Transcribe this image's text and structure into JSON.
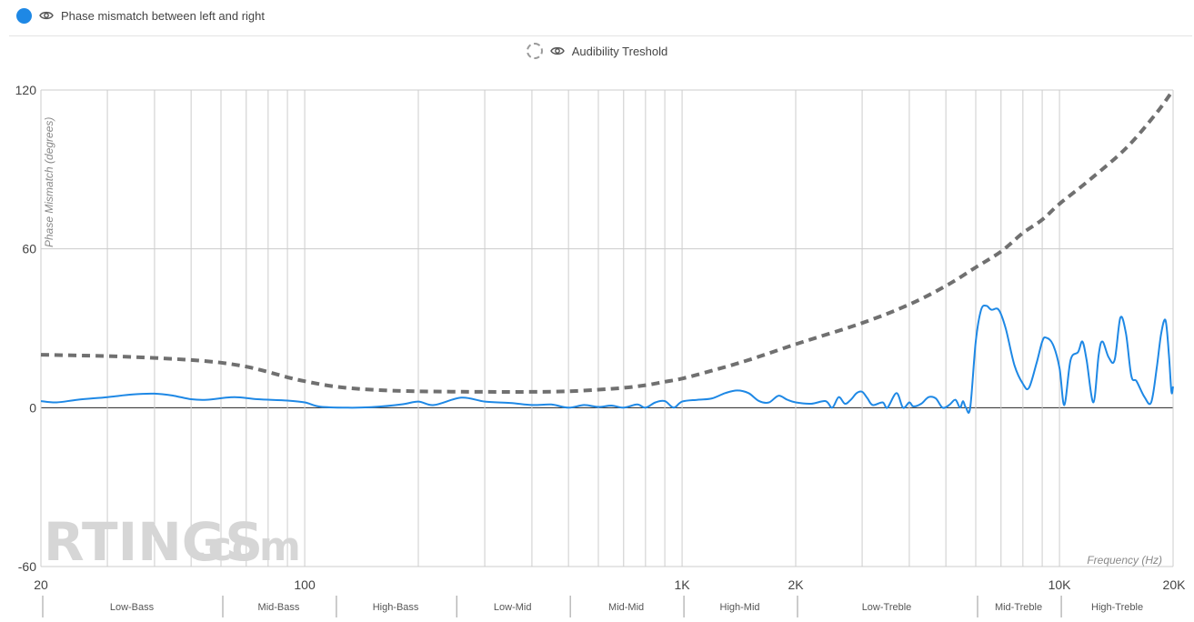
{
  "legend": {
    "series_label": "Phase mismatch between left and right",
    "threshold_label": "Audibility Treshold"
  },
  "colors": {
    "series": "#1e88e5",
    "threshold": "#707070",
    "grid": "#cccccc",
    "zero_line": "#222222"
  },
  "icons": {
    "visibility": "eye-icon"
  },
  "watermark": {
    "brand": "RTINGS",
    "suffix": ".com"
  },
  "chart_data": {
    "type": "line",
    "ylabel": "Phase Mismatch (degrees)",
    "xlabel": "Frequency (Hz)",
    "xscale": "log",
    "xlim": [
      20,
      20000
    ],
    "ylim": [
      -60,
      120
    ],
    "grid": true,
    "y_ticks": [
      {
        "value": 120,
        "label": "120"
      },
      {
        "value": 60,
        "label": "60"
      },
      {
        "value": 0,
        "label": "0"
      },
      {
        "value": -60,
        "label": "-60"
      }
    ],
    "x_ticks": [
      {
        "value": 20,
        "label": "20"
      },
      {
        "value": 100,
        "label": "100"
      },
      {
        "value": 1000,
        "label": "1K"
      },
      {
        "value": 2000,
        "label": "2K"
      },
      {
        "value": 10000,
        "label": "10K"
      },
      {
        "value": 20000,
        "label": "20K"
      }
    ],
    "gridlines_x": [
      20,
      30,
      40,
      50,
      60,
      70,
      80,
      90,
      100,
      200,
      300,
      400,
      500,
      600,
      700,
      800,
      900,
      1000,
      2000,
      3000,
      4000,
      5000,
      6000,
      7000,
      8000,
      9000,
      10000,
      20000
    ],
    "bands": [
      {
        "label": "Low-Bass",
        "from": 20,
        "to": 60
      },
      {
        "label": "Mid-Bass",
        "from": 60,
        "to": 120
      },
      {
        "label": "High-Bass",
        "from": 120,
        "to": 250
      },
      {
        "label": "Low-Mid",
        "from": 250,
        "to": 500
      },
      {
        "label": "Mid-Mid",
        "from": 500,
        "to": 1000
      },
      {
        "label": "High-Mid",
        "from": 1000,
        "to": 2000
      },
      {
        "label": "Low-Treble",
        "from": 2000,
        "to": 6000
      },
      {
        "label": "Mid-Treble",
        "from": 6000,
        "to": 10000
      },
      {
        "label": "High-Treble",
        "from": 10000,
        "to": 20000
      }
    ],
    "series": [
      {
        "name": "Phase mismatch between left and right",
        "style": "solid",
        "points": [
          [
            20,
            2.5
          ],
          [
            22,
            2.0
          ],
          [
            25,
            3.0
          ],
          [
            30,
            4.0
          ],
          [
            35,
            5.0
          ],
          [
            40,
            5.3
          ],
          [
            45,
            4.5
          ],
          [
            50,
            3.2
          ],
          [
            55,
            3.0
          ],
          [
            65,
            4.0
          ],
          [
            75,
            3.2
          ],
          [
            90,
            2.7
          ],
          [
            100,
            2.0
          ],
          [
            110,
            0.4
          ],
          [
            130,
            0.0
          ],
          [
            150,
            0.2
          ],
          [
            180,
            1.2
          ],
          [
            200,
            2.3
          ],
          [
            220,
            1.0
          ],
          [
            260,
            3.8
          ],
          [
            300,
            2.3
          ],
          [
            350,
            1.8
          ],
          [
            400,
            1.0
          ],
          [
            450,
            1.2
          ],
          [
            500,
            0.0
          ],
          [
            550,
            1.0
          ],
          [
            600,
            0.3
          ],
          [
            650,
            0.8
          ],
          [
            700,
            0.0
          ],
          [
            760,
            1.2
          ],
          [
            800,
            0.0
          ],
          [
            850,
            2.0
          ],
          [
            900,
            2.5
          ],
          [
            950,
            0.0
          ],
          [
            1000,
            2.3
          ],
          [
            1100,
            3.0
          ],
          [
            1200,
            3.5
          ],
          [
            1300,
            5.5
          ],
          [
            1400,
            6.5
          ],
          [
            1500,
            5.5
          ],
          [
            1600,
            2.5
          ],
          [
            1700,
            2.0
          ],
          [
            1800,
            4.5
          ],
          [
            1900,
            3.0
          ],
          [
            2000,
            2.0
          ],
          [
            2200,
            1.5
          ],
          [
            2400,
            2.5
          ],
          [
            2500,
            0.0
          ],
          [
            2600,
            4.0
          ],
          [
            2700,
            1.5
          ],
          [
            2800,
            3.0
          ],
          [
            2900,
            5.5
          ],
          [
            3000,
            6.0
          ],
          [
            3100,
            3.5
          ],
          [
            3200,
            1.0
          ],
          [
            3400,
            2.0
          ],
          [
            3500,
            0.0
          ],
          [
            3700,
            5.5
          ],
          [
            3850,
            0.0
          ],
          [
            4000,
            2.0
          ],
          [
            4100,
            0.5
          ],
          [
            4300,
            1.5
          ],
          [
            4500,
            4.0
          ],
          [
            4700,
            3.5
          ],
          [
            4900,
            0.0
          ],
          [
            5100,
            1.0
          ],
          [
            5300,
            3.0
          ],
          [
            5450,
            0.0
          ],
          [
            5550,
            2.5
          ],
          [
            5650,
            0.0
          ],
          [
            5800,
            0.0
          ],
          [
            6000,
            25.0
          ],
          [
            6200,
            37.0
          ],
          [
            6400,
            38.5
          ],
          [
            6600,
            37.0
          ],
          [
            6900,
            37.0
          ],
          [
            7200,
            30.0
          ],
          [
            7600,
            16.0
          ],
          [
            8000,
            9.0
          ],
          [
            8300,
            7.5
          ],
          [
            8700,
            17.0
          ],
          [
            9000,
            25.0
          ],
          [
            9200,
            26.5
          ],
          [
            9600,
            24.0
          ],
          [
            10000,
            15.0
          ],
          [
            10300,
            1.0
          ],
          [
            10700,
            18.0
          ],
          [
            11200,
            21.0
          ],
          [
            11500,
            25.0
          ],
          [
            11800,
            18.0
          ],
          [
            12300,
            2.0
          ],
          [
            12700,
            20.0
          ],
          [
            13000,
            25.0
          ],
          [
            13500,
            19.0
          ],
          [
            14000,
            18.0
          ],
          [
            14500,
            34.0
          ],
          [
            15000,
            28.0
          ],
          [
            15500,
            12.0
          ],
          [
            16000,
            10.0
          ],
          [
            16800,
            4.0
          ],
          [
            17500,
            2.0
          ],
          [
            18100,
            15.0
          ],
          [
            18600,
            28.0
          ],
          [
            19100,
            33.0
          ],
          [
            19500,
            20.0
          ],
          [
            19800,
            6.0
          ],
          [
            20000,
            8.0
          ]
        ]
      },
      {
        "name": "Audibility Treshold",
        "style": "dashed",
        "points": [
          [
            20,
            20.0
          ],
          [
            30,
            19.5
          ],
          [
            40,
            18.8
          ],
          [
            50,
            18.0
          ],
          [
            60,
            17.0
          ],
          [
            70,
            15.5
          ],
          [
            80,
            13.5
          ],
          [
            90,
            11.5
          ],
          [
            100,
            10.0
          ],
          [
            120,
            8.0
          ],
          [
            150,
            6.8
          ],
          [
            200,
            6.2
          ],
          [
            300,
            6.0
          ],
          [
            400,
            6.0
          ],
          [
            500,
            6.2
          ],
          [
            600,
            6.8
          ],
          [
            700,
            7.5
          ],
          [
            800,
            8.5
          ],
          [
            900,
            9.8
          ],
          [
            1000,
            11.0
          ],
          [
            1200,
            14.0
          ],
          [
            1500,
            18.0
          ],
          [
            2000,
            24.0
          ],
          [
            3000,
            32.0
          ],
          [
            4000,
            39.0
          ],
          [
            5000,
            46.0
          ],
          [
            6000,
            53.0
          ],
          [
            7000,
            59.0
          ],
          [
            8000,
            66.0
          ],
          [
            9000,
            71.0
          ],
          [
            10000,
            77.0
          ],
          [
            12000,
            86.0
          ],
          [
            15000,
            98.0
          ],
          [
            18000,
            111.0
          ],
          [
            20000,
            120.0
          ]
        ]
      }
    ]
  }
}
